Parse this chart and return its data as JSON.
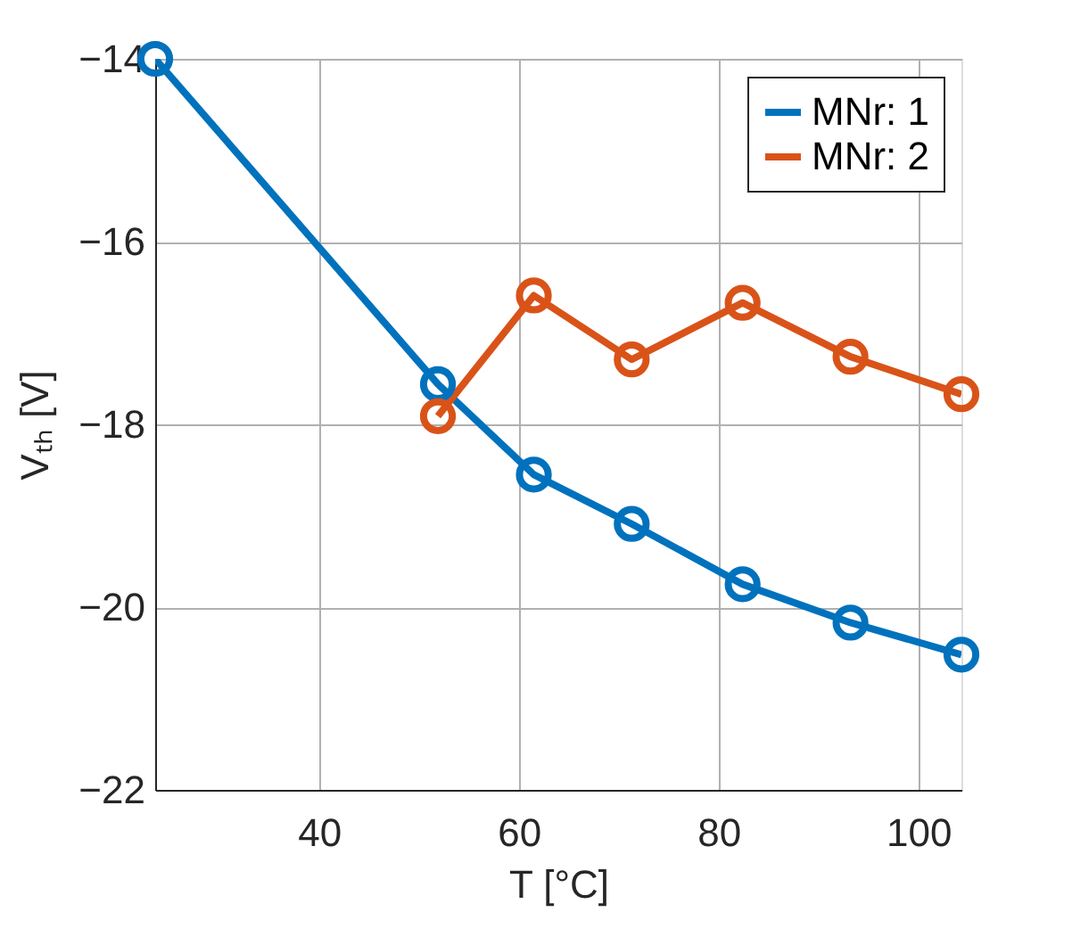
{
  "chart_data": {
    "type": "line",
    "xlabel": "T [°C]",
    "ylabel": "Vₜₕ  [V]",
    "xlim": [
      23.6,
      104.3
    ],
    "ylim": [
      -22,
      -14
    ],
    "xticks": [
      40,
      60,
      80,
      100
    ],
    "yticks": [
      -22,
      -20,
      -18,
      -16,
      -14
    ],
    "grid": true,
    "legend": "top right",
    "marker": "circle",
    "line_style": "solid",
    "series": [
      {
        "name": "MNr: 1",
        "color": "#0072bd",
        "x": [
          23.6,
          51.9,
          61.5,
          71.3,
          82.4,
          93.2,
          104.3
        ],
        "values": [
          -14,
          -17.56,
          -18.55,
          -19.09,
          -19.75,
          -20.17,
          -20.52
        ]
      },
      {
        "name": "MNr: 2",
        "color": "#d95319",
        "x": [
          51.9,
          61.5,
          71.3,
          82.4,
          93.2,
          104.3
        ],
        "values": [
          -17.91,
          -16.59,
          -17.29,
          -16.67,
          -17.26,
          -17.67
        ]
      }
    ]
  }
}
